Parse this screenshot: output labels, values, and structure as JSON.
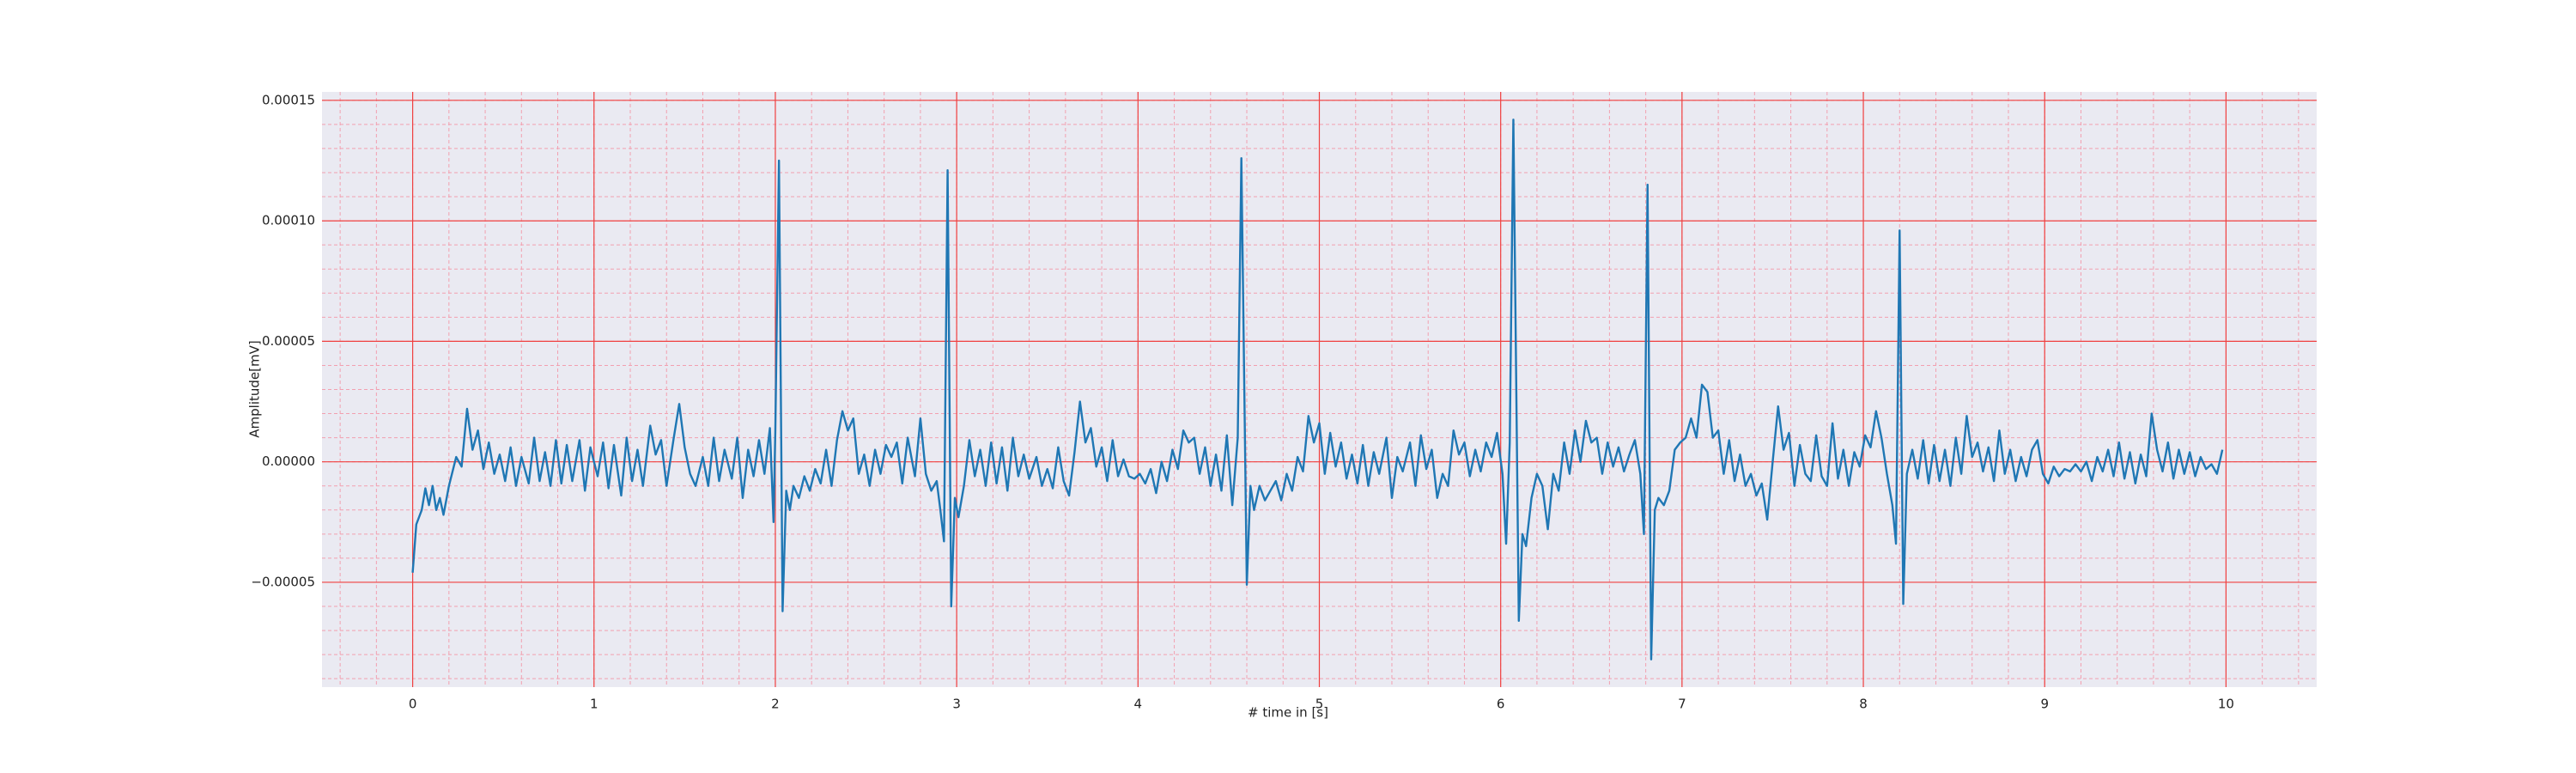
{
  "chart_data": {
    "type": "line",
    "xlabel": "# time in [s]",
    "ylabel": "Amplitude[mV]",
    "xlim": [
      -0.5,
      10.5
    ],
    "xticks": [
      0,
      1,
      2,
      3,
      4,
      5,
      6,
      7,
      8,
      9,
      10
    ],
    "ylim": [
      -9.35e-05,
      0.0001535
    ],
    "yticks": [
      {
        "value": -5e-05,
        "label": "−0.00005"
      },
      {
        "value": 0,
        "label": "0.00000"
      },
      {
        "value": 5e-05,
        "label": "0.00005"
      },
      {
        "value": 0.0001,
        "label": "0.00010"
      },
      {
        "value": 0.00015,
        "label": "0.00015"
      }
    ],
    "grid": true,
    "minor_grid": true,
    "background": "#eaeaf2",
    "grid_color": "#f04040",
    "minor_grid_color": "#f2a0b0",
    "x": [
      0,
      0.02,
      0.05,
      0.07,
      0.09,
      0.11,
      0.13,
      0.15,
      0.17,
      0.2,
      0.24,
      0.27,
      0.3,
      0.33,
      0.36,
      0.39,
      0.42,
      0.45,
      0.48,
      0.51,
      0.54,
      0.57,
      0.6,
      0.64,
      0.67,
      0.7,
      0.73,
      0.76,
      0.79,
      0.82,
      0.85,
      0.88,
      0.92,
      0.95,
      0.98,
      1.02,
      1.05,
      1.08,
      1.11,
      1.15,
      1.18,
      1.21,
      1.24,
      1.27,
      1.31,
      1.34,
      1.37,
      1.4,
      1.44,
      1.47,
      1.5,
      1.53,
      1.56,
      1.6,
      1.63,
      1.66,
      1.69,
      1.72,
      1.76,
      1.79,
      1.82,
      1.85,
      1.88,
      1.91,
      1.94,
      1.97,
      1.99,
      2.0,
      2.02,
      2.04,
      2.06,
      2.08,
      2.1,
      2.13,
      2.16,
      2.19,
      2.22,
      2.25,
      2.28,
      2.31,
      2.34,
      2.37,
      2.4,
      2.43,
      2.46,
      2.49,
      2.52,
      2.55,
      2.58,
      2.61,
      2.64,
      2.67,
      2.7,
      2.73,
      2.77,
      2.8,
      2.83,
      2.86,
      2.89,
      2.91,
      2.93,
      2.95,
      2.97,
      2.99,
      3.01,
      3.04,
      3.07,
      3.1,
      3.13,
      3.16,
      3.19,
      3.22,
      3.25,
      3.28,
      3.31,
      3.34,
      3.37,
      3.4,
      3.44,
      3.47,
      3.5,
      3.53,
      3.56,
      3.59,
      3.62,
      3.65,
      3.68,
      3.71,
      3.74,
      3.77,
      3.8,
      3.83,
      3.86,
      3.89,
      3.92,
      3.95,
      3.98,
      4.01,
      4.04,
      4.07,
      4.1,
      4.13,
      4.16,
      4.19,
      4.22,
      4.25,
      4.28,
      4.31,
      4.34,
      4.37,
      4.4,
      4.43,
      4.46,
      4.49,
      4.52,
      4.55,
      4.57,
      4.6,
      4.62,
      4.64,
      4.67,
      4.7,
      4.73,
      4.76,
      4.79,
      4.82,
      4.85,
      4.88,
      4.91,
      4.94,
      4.97,
      5.0,
      5.03,
      5.06,
      5.09,
      5.12,
      5.15,
      5.18,
      5.21,
      5.24,
      5.27,
      5.3,
      5.33,
      5.37,
      5.4,
      5.43,
      5.46,
      5.5,
      5.53,
      5.56,
      5.59,
      5.62,
      5.65,
      5.68,
      5.71,
      5.74,
      5.77,
      5.8,
      5.83,
      5.86,
      5.89,
      5.92,
      5.95,
      5.98,
      6.01,
      6.03,
      6.05,
      6.07,
      6.1,
      6.12,
      6.14,
      6.17,
      6.2,
      6.23,
      6.26,
      6.29,
      6.32,
      6.35,
      6.38,
      6.41,
      6.44,
      6.47,
      6.5,
      6.53,
      6.56,
      6.59,
      6.62,
      6.65,
      6.68,
      6.71,
      6.74,
      6.77,
      6.79,
      6.81,
      6.83,
      6.85,
      6.87,
      6.9,
      6.93,
      6.96,
      6.99,
      7.02,
      7.05,
      7.08,
      7.11,
      7.14,
      7.17,
      7.2,
      7.23,
      7.26,
      7.29,
      7.32,
      7.35,
      7.38,
      7.41,
      7.44,
      7.47,
      7.5,
      7.53,
      7.56,
      7.59,
      7.62,
      7.65,
      7.68,
      7.71,
      7.74,
      7.77,
      7.8,
      7.83,
      7.86,
      7.89,
      7.92,
      7.95,
      7.98,
      8.01,
      8.04,
      8.07,
      8.1,
      8.13,
      8.16,
      8.18,
      8.2,
      8.22,
      8.24,
      8.27,
      8.3,
      8.33,
      8.36,
      8.39,
      8.42,
      8.45,
      8.48,
      8.51,
      8.54,
      8.57,
      8.6,
      8.63,
      8.66,
      8.69,
      8.72,
      8.75,
      8.78,
      8.81,
      8.84,
      8.87,
      8.9,
      8.93,
      8.96,
      8.99,
      9.02,
      9.05,
      9.08,
      9.11,
      9.14,
      9.17,
      9.2,
      9.23,
      9.26,
      9.29,
      9.32,
      9.35,
      9.38,
      9.41,
      9.44,
      9.47,
      9.5,
      9.53,
      9.56,
      9.59,
      9.62,
      9.65,
      9.68,
      9.71,
      9.74,
      9.77,
      9.8,
      9.83,
      9.86,
      9.89,
      9.92,
      9.95,
      9.98
    ],
    "series": [
      {
        "color": "#1f77b4",
        "values": [
          -4.6e-05,
          -2.6e-05,
          -2e-05,
          -1.1e-05,
          -1.8e-05,
          -1e-05,
          -2e-05,
          -1.5e-05,
          -2.2e-05,
          -1e-05,
          2e-06,
          -2e-06,
          2.2e-05,
          5e-06,
          1.3e-05,
          -3e-06,
          8e-06,
          -5e-06,
          3e-06,
          -8e-06,
          6e-06,
          -1e-05,
          2e-06,
          -9e-06,
          1e-05,
          -8e-06,
          4e-06,
          -1e-05,
          9e-06,
          -9e-06,
          7e-06,
          -8e-06,
          9e-06,
          -1.2e-05,
          6e-06,
          -6e-06,
          8e-06,
          -1.1e-05,
          7e-06,
          -1.4e-05,
          1e-05,
          -8e-06,
          5e-06,
          -1e-05,
          1.5e-05,
          3e-06,
          9e-06,
          -1e-05,
          1e-05,
          2.4e-05,
          6e-06,
          -5e-06,
          -1e-05,
          2e-06,
          -1e-05,
          1e-05,
          -8e-06,
          5e-06,
          -7e-06,
          1e-05,
          -1.5e-05,
          5e-06,
          -6e-06,
          9e-06,
          -5e-06,
          1.4e-05,
          -2.5e-05,
          1.3e-05,
          0.000125,
          -6.2e-05,
          -1.2e-05,
          -2e-05,
          -1e-05,
          -1.5e-05,
          -6e-06,
          -1.2e-05,
          -3e-06,
          -9e-06,
          5e-06,
          -1e-05,
          9e-06,
          2.1e-05,
          1.3e-05,
          1.8e-05,
          -5e-06,
          3e-06,
          -1e-05,
          5e-06,
          -5e-06,
          7e-06,
          2e-06,
          8e-06,
          -9e-06,
          1e-05,
          -6e-06,
          1.8e-05,
          -5e-06,
          -1.2e-05,
          -8e-06,
          -2e-05,
          -3.3e-05,
          0.000121,
          -6e-05,
          -1.5e-05,
          -2.3e-05,
          -1e-05,
          9e-06,
          -6e-06,
          5e-06,
          -1e-05,
          8e-06,
          -9e-06,
          6e-06,
          -1.2e-05,
          1e-05,
          -6e-06,
          3e-06,
          -7e-06,
          2e-06,
          -1e-05,
          -3e-06,
          -1.1e-05,
          6e-06,
          -8e-06,
          -1.4e-05,
          4e-06,
          2.5e-05,
          8e-06,
          1.4e-05,
          -2e-06,
          6e-06,
          -8e-06,
          9e-06,
          -6e-06,
          1e-06,
          -6e-06,
          -7e-06,
          -5e-06,
          -9e-06,
          -3e-06,
          -1.3e-05,
          0,
          -8e-06,
          5e-06,
          -3e-06,
          1.3e-05,
          8e-06,
          1e-05,
          -5e-06,
          6e-06,
          -1e-05,
          3e-06,
          -1.2e-05,
          1.1e-05,
          -1.8e-05,
          1e-05,
          0.000126,
          -5.1e-05,
          -1e-05,
          -2e-05,
          -1e-05,
          -1.6e-05,
          -1.2e-05,
          -8e-06,
          -1.6e-05,
          -5e-06,
          -1.2e-05,
          2e-06,
          -4e-06,
          1.9e-05,
          8e-06,
          1.6e-05,
          -5e-06,
          1.2e-05,
          -2e-06,
          8e-06,
          -7e-06,
          3e-06,
          -9e-06,
          7e-06,
          -1e-05,
          4e-06,
          -5e-06,
          1e-05,
          -1.5e-05,
          2e-06,
          -4e-06,
          8e-06,
          -1e-05,
          1.1e-05,
          -3e-06,
          5e-06,
          -1.5e-05,
          -5e-06,
          -1e-05,
          1.3e-05,
          3e-06,
          8e-06,
          -6e-06,
          5e-06,
          -4e-06,
          8e-06,
          2e-06,
          1.2e-05,
          -5e-06,
          -3.4e-05,
          8e-06,
          0.000142,
          -6.6e-05,
          -3e-05,
          -3.5e-05,
          -1.5e-05,
          -5e-06,
          -1e-05,
          -2.8e-05,
          -5e-06,
          -1.2e-05,
          8e-06,
          -5e-06,
          1.3e-05,
          0,
          1.7e-05,
          8e-06,
          1e-05,
          -5e-06,
          8e-06,
          -2e-06,
          6e-06,
          -4e-06,
          3e-06,
          9e-06,
          -5e-06,
          -3e-05,
          0.000115,
          -8.2e-05,
          -2e-05,
          -1.5e-05,
          -1.8e-05,
          -1.2e-05,
          5e-06,
          8e-06,
          1e-05,
          1.8e-05,
          1e-05,
          3.2e-05,
          2.9e-05,
          1e-05,
          1.3e-05,
          -5e-06,
          9e-06,
          -8e-06,
          3e-06,
          -1e-05,
          -5e-06,
          -1.4e-05,
          -9e-06,
          -2.4e-05,
          0,
          2.3e-05,
          5e-06,
          1.2e-05,
          -1e-05,
          7e-06,
          -5e-06,
          -8e-06,
          1.1e-05,
          -6e-06,
          -1e-05,
          1.6e-05,
          -7e-06,
          5e-06,
          -1e-05,
          4e-06,
          -2e-06,
          1.1e-05,
          6e-06,
          2.1e-05,
          1e-05,
          -5e-06,
          -1.8e-05,
          -3.4e-05,
          9.6e-05,
          -5.9e-05,
          -5e-06,
          5e-06,
          -7e-06,
          9e-06,
          -9e-06,
          7e-06,
          -8e-06,
          5e-06,
          -1e-05,
          1e-05,
          -5e-06,
          1.9e-05,
          2e-06,
          8e-06,
          -4e-06,
          6e-06,
          -8e-06,
          1.3e-05,
          -5e-06,
          5e-06,
          -8e-06,
          2e-06,
          -6e-06,
          5e-06,
          9e-06,
          -5e-06,
          -9e-06,
          -2e-06,
          -6e-06,
          -3e-06,
          -4e-06,
          -1e-06,
          -4e-06,
          0,
          -8e-06,
          2e-06,
          -4e-06,
          5e-06,
          -6e-06,
          8e-06,
          -7e-06,
          4e-06,
          -9e-06,
          3e-06,
          -6e-06,
          2e-05,
          5e-06,
          -4e-06,
          8e-06,
          -7e-06,
          5e-06,
          -5e-06,
          4e-06,
          -6e-06,
          2e-06,
          -3e-06,
          -1e-06,
          -5e-06,
          5e-06
        ]
      }
    ]
  }
}
